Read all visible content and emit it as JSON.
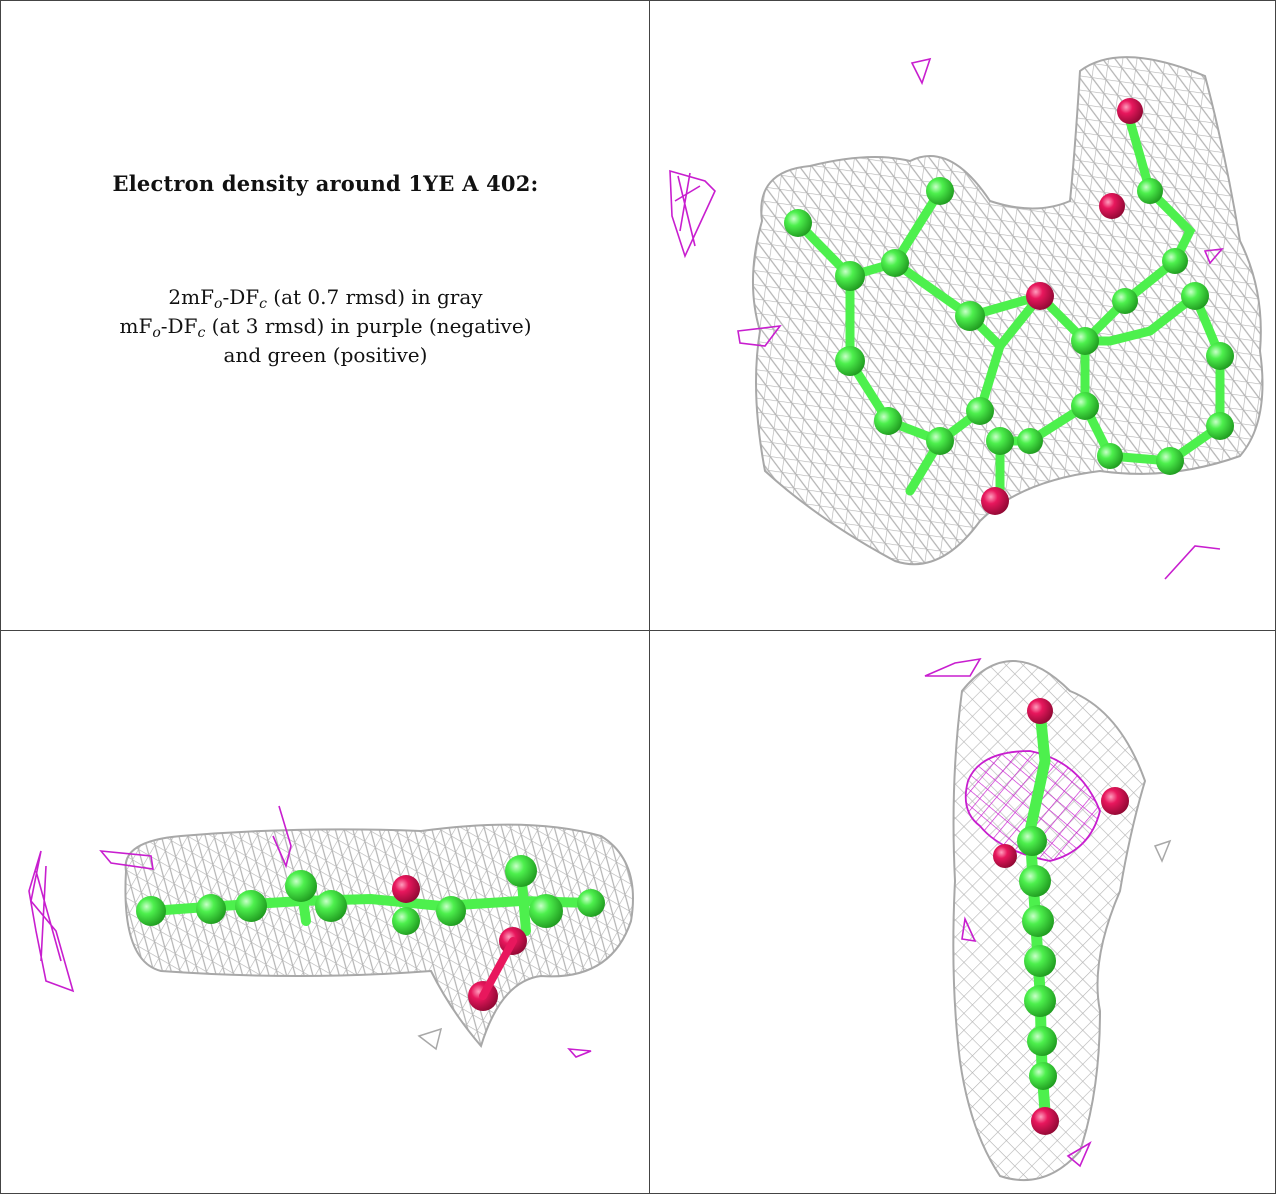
{
  "caption": {
    "title": "Electron density around 1YE A 402:",
    "line1": {
      "prefix": "2mF",
      "sub1": "o",
      "mid": "-DF",
      "sub2": "c",
      "suffix": " (at 0.7 rmsd) in gray"
    },
    "line2": {
      "prefix": "mF",
      "sub1": "o",
      "mid": "-DF",
      "sub2": "c",
      "suffix": " (at 3 rmsd) in purple (negative)"
    },
    "line3": "and green (positive)"
  },
  "colors": {
    "mesh_gray": "#b4b4b4",
    "difference_negative": "#c81ecf",
    "difference_positive": "#2ccc2c",
    "carbon": "#4df04d",
    "oxygen": "#e8175d"
  }
}
